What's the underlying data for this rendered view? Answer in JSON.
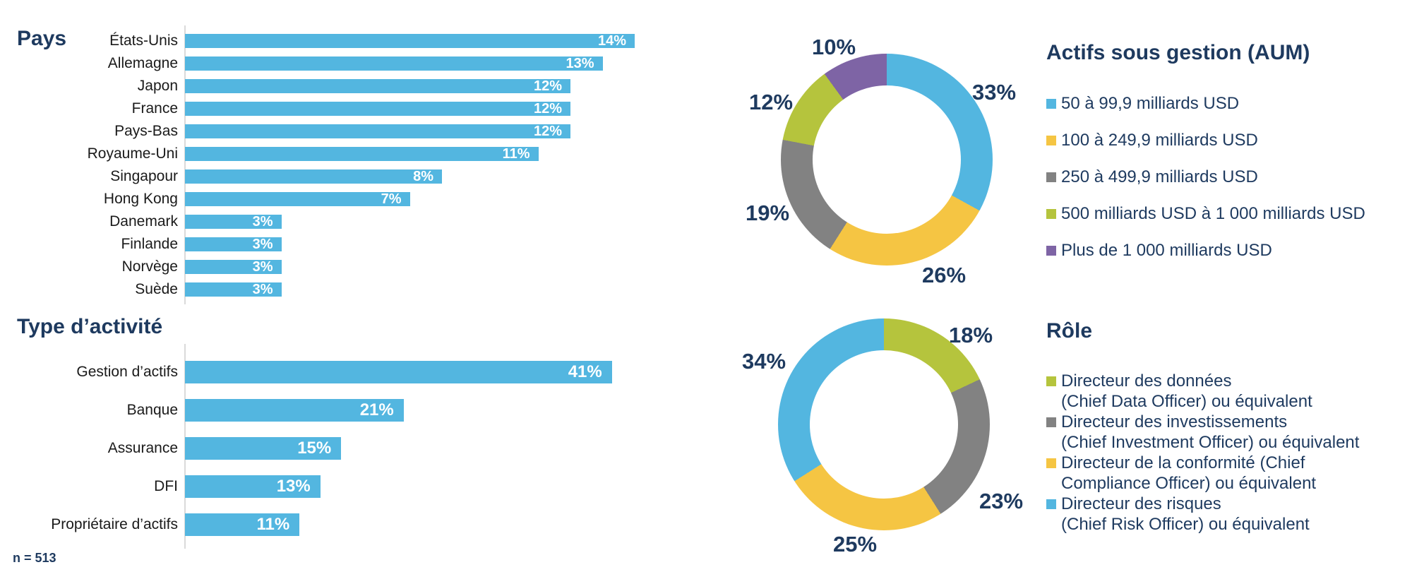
{
  "colors": {
    "navy_text": "#1E3A5F",
    "bar_blue": "#53B6E0",
    "yellow": "#F5C543",
    "gray": "#828282",
    "green": "#B5C43D",
    "purple": "#7E64A5",
    "axis_line": "#DADADA",
    "category_text": "#1A1A1A"
  },
  "footnote": "n = 513",
  "chart_data": [
    {
      "type": "bar",
      "title": "Pays",
      "orientation": "horizontal",
      "unit": "percent",
      "xlim": [
        0,
        14
      ],
      "grid": false,
      "categories": [
        "États-Unis",
        "Allemagne",
        "Japon",
        "France",
        "Pays-Bas",
        "Royaume-Uni",
        "Singapour",
        "Hong Kong",
        "Danemark",
        "Finlande",
        "Norvège",
        "Suède"
      ],
      "values": [
        14,
        13,
        12,
        12,
        12,
        11,
        8,
        7,
        3,
        3,
        3,
        3
      ],
      "data_labels": [
        "14%",
        "13%",
        "12%",
        "12%",
        "12%",
        "11%",
        "8%",
        "7%",
        "3%",
        "3%",
        "3%",
        "3%"
      ],
      "bar_color": "#53B6E0"
    },
    {
      "type": "bar",
      "title": "Type d’activité",
      "orientation": "horizontal",
      "unit": "percent",
      "xlim": [
        0,
        41
      ],
      "grid": false,
      "categories": [
        "Gestion d’actifs",
        "Banque",
        "Assurance",
        "DFI",
        "Propriétaire d’actifs"
      ],
      "values": [
        41,
        21,
        15,
        13,
        11
      ],
      "data_labels": [
        "41%",
        "21%",
        "15%",
        "13%",
        "11%"
      ],
      "bar_color": "#53B6E0"
    },
    {
      "type": "pie",
      "subtype": "donut",
      "title": "Actifs sous gestion (AUM)",
      "start_angle_deg": 0,
      "direction": "clockwise",
      "legend_position": "right",
      "slices": [
        {
          "label": "50 à 99,9 milliards USD",
          "value": 33,
          "data_label": "33%",
          "color": "#53B6E0"
        },
        {
          "label": "100 à 249,9 milliards USD",
          "value": 26,
          "data_label": "26%",
          "color": "#F5C543"
        },
        {
          "label": "250 à 499,9 milliards USD",
          "value": 19,
          "data_label": "19%",
          "color": "#828282"
        },
        {
          "label": "500 milliards USD à 1 000 milliards USD",
          "value": 12,
          "data_label": "12%",
          "color": "#B5C43D"
        },
        {
          "label": "Plus de 1 000 milliards USD",
          "value": 10,
          "data_label": "10%",
          "color": "#7E64A5"
        }
      ]
    },
    {
      "type": "pie",
      "subtype": "donut",
      "title": "Rôle",
      "start_angle_deg": 0,
      "direction": "clockwise",
      "legend_position": "right",
      "slices": [
        {
          "legend_lines": [
            "Directeur des données",
            "(Chief Data Officer) ou équivalent"
          ],
          "value": 18,
          "data_label": "18%",
          "color": "#B5C43D"
        },
        {
          "legend_lines": [
            "Directeur des investissements",
            "(Chief Investment Officer) ou équivalent"
          ],
          "value": 23,
          "data_label": "23%",
          "color": "#828282"
        },
        {
          "legend_lines": [
            "Directeur de la conformité (Chief",
            "Compliance Officer) ou équivalent"
          ],
          "value": 25,
          "data_label": "25%",
          "color": "#F5C543"
        },
        {
          "legend_lines": [
            "Directeur des risques",
            "(Chief Risk Officer) ou équivalent"
          ],
          "value": 34,
          "data_label": "34%",
          "color": "#53B6E0"
        }
      ]
    }
  ]
}
